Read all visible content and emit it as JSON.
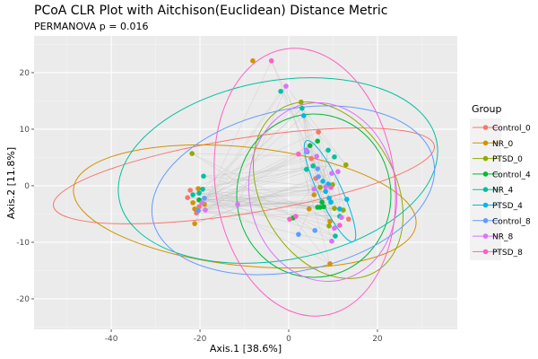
{
  "chart_data": {
    "type": "scatter",
    "title": "PCoA CLR Plot with Aitchison(Euclidean) Distance Metric",
    "subtitle": "PERMANOVA p = 0.016",
    "xlabel": "Axis.1   [38.6%]",
    "ylabel": "Axis.2   [11.8%]",
    "xlim": [
      -57.4,
      38
    ],
    "ylim": [
      -25.4,
      26.5
    ],
    "xticks": [
      -40,
      -20,
      0,
      20
    ],
    "yticks": [
      -20,
      -10,
      0,
      10,
      20
    ],
    "grid": true,
    "legend": {
      "title": "Group",
      "placement": "right"
    },
    "series": [
      {
        "name": "Control_0",
        "color": "#F8766D",
        "points": [
          [
            -22.2,
            -0.8
          ],
          [
            -22.8,
            -2.1
          ],
          [
            -20.2,
            -3.7
          ],
          [
            -20.8,
            -4.8
          ],
          [
            6.7,
            9.5
          ],
          [
            5.1,
            4.8
          ],
          [
            6.1,
            1.3
          ],
          [
            13.5,
            -5.9
          ]
        ]
      },
      {
        "name": "NR_0",
        "color": "#D39200",
        "points": [
          [
            -20.4,
            -0.5
          ],
          [
            -21.6,
            -3.0
          ],
          [
            -19.0,
            -3.3
          ],
          [
            -21.2,
            -4.1
          ],
          [
            -21.2,
            -6.7
          ],
          [
            -8.1,
            22.1
          ],
          [
            5.7,
            -1.6
          ],
          [
            4.6,
            -4.1
          ],
          [
            9.3,
            -6.3
          ],
          [
            9.3,
            -13.8
          ]
        ]
      },
      {
        "name": "PTSD_0",
        "color": "#93AA00",
        "points": [
          [
            -21.8,
            5.7
          ],
          [
            2.8,
            14.8
          ],
          [
            12.9,
            3.7
          ],
          [
            7.1,
            -0.3
          ],
          [
            9.9,
            0.2
          ],
          [
            10.3,
            -4.0
          ],
          [
            12.3,
            -4.3
          ],
          [
            9.1,
            -7.1
          ]
        ]
      },
      {
        "name": "Control_4",
        "color": "#00BA38",
        "points": [
          [
            -20.2,
            -2.5
          ],
          [
            6.5,
            7.9
          ],
          [
            4.8,
            7.1
          ],
          [
            7.5,
            -2.9
          ],
          [
            6.5,
            -3.8
          ],
          [
            7.1,
            -3.8
          ],
          [
            7.9,
            -3.7
          ],
          [
            1.0,
            -5.7
          ]
        ]
      },
      {
        "name": "NR_4",
        "color": "#00C19F",
        "points": [
          [
            -19.2,
            1.7
          ],
          [
            -19.4,
            -0.6
          ],
          [
            -20.2,
            -1.3
          ],
          [
            -21.6,
            -1.6
          ],
          [
            -1.8,
            16.7
          ],
          [
            3.0,
            13.7
          ],
          [
            8.9,
            6.3
          ],
          [
            10.3,
            5.1
          ],
          [
            5.5,
            3.5
          ],
          [
            4.0,
            2.9
          ],
          [
            11.5,
            -5.4
          ],
          [
            10.5,
            -8.9
          ]
        ]
      },
      {
        "name": "PTSD_4",
        "color": "#00B9E3",
        "points": [
          [
            3.4,
            12.4
          ],
          [
            7.7,
            0.8
          ],
          [
            8.9,
            0.3
          ],
          [
            8.3,
            -1.0
          ],
          [
            9.1,
            -2.2
          ],
          [
            13.1,
            -2.4
          ],
          [
            9.5,
            -2.9
          ],
          [
            11.5,
            -4.1
          ]
        ]
      },
      {
        "name": "Control_8",
        "color": "#619CFF",
        "points": [
          [
            -19.0,
            -2.2
          ],
          [
            -20.4,
            -4.4
          ],
          [
            4.2,
            6.0
          ],
          [
            6.5,
            3.0
          ],
          [
            6.7,
            1.6
          ],
          [
            5.9,
            -7.9
          ],
          [
            2.2,
            -8.6
          ]
        ]
      },
      {
        "name": "NR_8",
        "color": "#DB72FB",
        "points": [
          [
            -19.6,
            -3.0
          ],
          [
            -18.8,
            -4.3
          ],
          [
            -11.5,
            -3.3
          ],
          [
            -0.6,
            17.6
          ],
          [
            4.0,
            6.3
          ],
          [
            6.3,
            5.2
          ],
          [
            11.1,
            2.5
          ],
          [
            9.7,
            2.2
          ],
          [
            8.3,
            -0.2
          ],
          [
            5.7,
            -0.6
          ],
          [
            11.9,
            -5.6
          ],
          [
            10.3,
            -7.5
          ],
          [
            9.7,
            -9.8
          ]
        ]
      },
      {
        "name": "PTSD_8",
        "color": "#FF61C3",
        "points": [
          [
            -3.9,
            22.1
          ],
          [
            2.2,
            5.6
          ],
          [
            9.5,
            -0.3
          ],
          [
            1.6,
            -5.4
          ],
          [
            0.2,
            -5.9
          ],
          [
            11.5,
            -7.0
          ]
        ]
      }
    ]
  }
}
